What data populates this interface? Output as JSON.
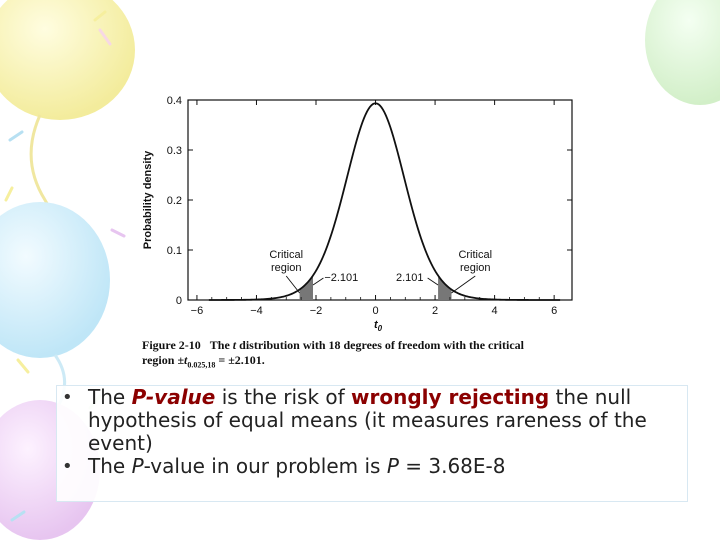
{
  "chart_data": {
    "type": "line",
    "distribution": "t",
    "degrees_of_freedom": 18,
    "ylabel": "Probability density",
    "xlabel": "t",
    "xlabel_subscript": "0",
    "xlim": [
      -6,
      6
    ],
    "ylim": [
      0,
      0.4
    ],
    "x_ticks": [
      "−6",
      "−4",
      "−2",
      "0",
      "2",
      "4",
      "6"
    ],
    "x_tick_values": [
      -6,
      -4,
      -2,
      0,
      2,
      4,
      6
    ],
    "y_ticks": [
      "0",
      "0.1",
      "0.2",
      "0.3",
      "0.4"
    ],
    "y_tick_values": [
      0,
      0.1,
      0.2,
      0.3,
      0.4
    ],
    "critical_value": 2.101,
    "annotations": {
      "left_region": "Critical\nregion",
      "right_region": "Critical\nregion",
      "left_value": "−2.101",
      "right_value": "2.101"
    }
  },
  "caption": {
    "figure_label": "Figure 2-10",
    "line1_a": "The ",
    "line1_t": "t",
    "line1_b": " distribution with 18 degrees of freedom with the critical",
    "line2_a": "region ±",
    "line2_t": "t",
    "line2_sub": "0.025,18",
    "line2_b": " = ±2.101."
  },
  "bullets": [
    {
      "pre": "The ",
      "em": "P-value",
      "mid": " is the risk of ",
      "strong": "wrongly rejecting",
      "post": " the null hypothesis of equal means (it measures rareness of the event)"
    },
    {
      "pre": "The ",
      "em": "P",
      "mid": "-value in our problem is ",
      "em2": "P",
      "post": " = 3.68E-8"
    }
  ],
  "bullet_char": "•"
}
